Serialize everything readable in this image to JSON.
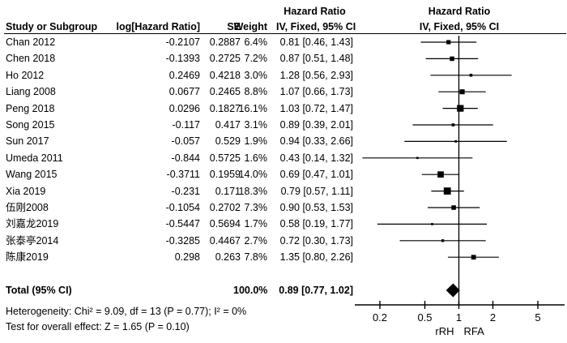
{
  "header": {
    "hr_title_text_col": "Hazard Ratio",
    "hr_title_plot_col": "Hazard Ratio",
    "col_study": "Study or Subgroup",
    "col_loghr": "log[Hazard Ratio]",
    "col_se": "SE",
    "col_weight": "Weight",
    "col_ci": "IV, Fixed, 95% CI",
    "col_ci_plot": "IV, Fixed, 95% CI"
  },
  "chart_data": {
    "type": "forest",
    "x_scale": "log",
    "axis_ticks": [
      0.2,
      0.5,
      1,
      2,
      5
    ],
    "axis_range": [
      0.125,
      8
    ],
    "axis_left_label": "rRH",
    "axis_right_label": "RFA",
    "null_line": 1,
    "studies": [
      {
        "name": "Chan 2012",
        "log_hr": "-0.2107",
        "se": "0.2887",
        "weight": "6.4%",
        "ci_text": "0.81 [0.46, 1.43]",
        "hr": 0.81,
        "lo": 0.46,
        "hi": 1.43,
        "weight_pct": 6.4
      },
      {
        "name": "Chen 2018",
        "log_hr": "-0.1393",
        "se": "0.2725",
        "weight": "7.2%",
        "ci_text": "0.87 [0.51, 1.48]",
        "hr": 0.87,
        "lo": 0.51,
        "hi": 1.48,
        "weight_pct": 7.2
      },
      {
        "name": "Ho 2012",
        "log_hr": "0.2469",
        "se": "0.4218",
        "weight": "3.0%",
        "ci_text": "1.28 [0.56, 2.93]",
        "hr": 1.28,
        "lo": 0.56,
        "hi": 2.93,
        "weight_pct": 3.0
      },
      {
        "name": "Liang 2008",
        "log_hr": "0.0677",
        "se": "0.2465",
        "weight": "8.8%",
        "ci_text": "1.07 [0.66, 1.73]",
        "hr": 1.07,
        "lo": 0.66,
        "hi": 1.73,
        "weight_pct": 8.8
      },
      {
        "name": "Peng 2018",
        "log_hr": "0.0296",
        "se": "0.1827",
        "weight": "16.1%",
        "ci_text": "1.03 [0.72, 1.47]",
        "hr": 1.03,
        "lo": 0.72,
        "hi": 1.47,
        "weight_pct": 16.1
      },
      {
        "name": "Song 2015",
        "log_hr": "-0.117",
        "se": "0.417",
        "weight": "3.1%",
        "ci_text": "0.89 [0.39, 2.01]",
        "hr": 0.89,
        "lo": 0.39,
        "hi": 2.01,
        "weight_pct": 3.1
      },
      {
        "name": "Sun 2017",
        "log_hr": "-0.057",
        "se": "0.529",
        "weight": "1.9%",
        "ci_text": "0.94 [0.33, 2.66]",
        "hr": 0.94,
        "lo": 0.33,
        "hi": 2.66,
        "weight_pct": 1.9
      },
      {
        "name": "Umeda 2011",
        "log_hr": "-0.844",
        "se": "0.5725",
        "weight": "1.6%",
        "ci_text": "0.43 [0.14, 1.32]",
        "hr": 0.43,
        "lo": 0.14,
        "hi": 1.32,
        "weight_pct": 1.6
      },
      {
        "name": "Wang 2015",
        "log_hr": "-0.3711",
        "se": "0.1959",
        "weight": "14.0%",
        "ci_text": "0.69 [0.47, 1.01]",
        "hr": 0.69,
        "lo": 0.47,
        "hi": 1.01,
        "weight_pct": 14.0
      },
      {
        "name": "Xia 2019",
        "log_hr": "-0.231",
        "se": "0.171",
        "weight": "18.3%",
        "ci_text": "0.79 [0.57, 1.11]",
        "hr": 0.79,
        "lo": 0.57,
        "hi": 1.11,
        "weight_pct": 18.3
      },
      {
        "name": "伍刚2008",
        "log_hr": "-0.1054",
        "se": "0.2702",
        "weight": "7.3%",
        "ci_text": "0.90 [0.53, 1.53]",
        "hr": 0.9,
        "lo": 0.53,
        "hi": 1.53,
        "weight_pct": 7.3
      },
      {
        "name": "刘嘉龙2019",
        "log_hr": "-0.5447",
        "se": "0.5694",
        "weight": "1.7%",
        "ci_text": "0.58 [0.19, 1.77]",
        "hr": 0.58,
        "lo": 0.19,
        "hi": 1.77,
        "weight_pct": 1.7
      },
      {
        "name": "张泰亭2014",
        "log_hr": "-0.3285",
        "se": "0.4467",
        "weight": "2.7%",
        "ci_text": "0.72 [0.30, 1.73]",
        "hr": 0.72,
        "lo": 0.3,
        "hi": 1.73,
        "weight_pct": 2.7
      },
      {
        "name": "陈康2019",
        "log_hr": "0.298",
        "se": "0.263",
        "weight": "7.8%",
        "ci_text": "1.35 [0.80, 2.26]",
        "hr": 1.35,
        "lo": 0.8,
        "hi": 2.26,
        "weight_pct": 7.8
      }
    ],
    "total": {
      "label": "Total (95% CI)",
      "weight": "100.0%",
      "ci_text": "0.89 [0.77, 1.02]",
      "hr": 0.89,
      "lo": 0.77,
      "hi": 1.02
    }
  },
  "footer": {
    "heterogeneity": "Heterogeneity: Chi² = 9.09, df = 13 (P = 0.77); I² = 0%",
    "overall_effect": "Test for overall effect: Z = 1.65 (P = 0.10)"
  },
  "colors": {
    "ink": "#000000",
    "background": "#ffffff"
  }
}
